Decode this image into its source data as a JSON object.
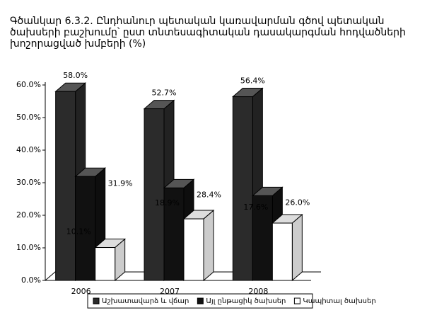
{
  "chart_data": {
    "type": "bar3d",
    "title": "Գծանկար 6.3.2. Ընդհանուր պետական կառավարման գծով պետական ծախսերի բաշխումը՝ ըստ տնտեսագիտական դասակարգման հոդվածների խոշորացված խմբերի (%)",
    "categories": [
      "2006",
      "2007",
      "2008"
    ],
    "series": [
      {
        "name": "Աշխատավարձ և վճար",
        "color": "#2b2b2b",
        "values": [
          58.0,
          52.7,
          56.4
        ],
        "value_labels": [
          "58.0%",
          "52.7%",
          "56.4%"
        ]
      },
      {
        "name": "Այլ ընթացիկ ծախսեր",
        "color": "#111111",
        "values": [
          31.9,
          28.4,
          26.0
        ],
        "value_labels": [
          "31.9%",
          "28.4%",
          "26.0%"
        ]
      },
      {
        "name": "Կապիտալ ծախսեր",
        "color": "#ffffff",
        "values": [
          10.1,
          18.9,
          17.6
        ],
        "value_labels": [
          "10.1%",
          "18.9%",
          "17.6%"
        ]
      }
    ],
    "ylim": [
      0,
      60
    ],
    "yticks": [
      {
        "value": 0,
        "label": "0.0%"
      },
      {
        "value": 10,
        "label": "10.0%"
      },
      {
        "value": 20,
        "label": "20.0%"
      },
      {
        "value": 30,
        "label": "30.0%"
      },
      {
        "value": 40,
        "label": "40.0%"
      },
      {
        "value": 50,
        "label": "50.0%"
      },
      {
        "value": 60,
        "label": "60.0%"
      }
    ],
    "legend": "bottom"
  }
}
